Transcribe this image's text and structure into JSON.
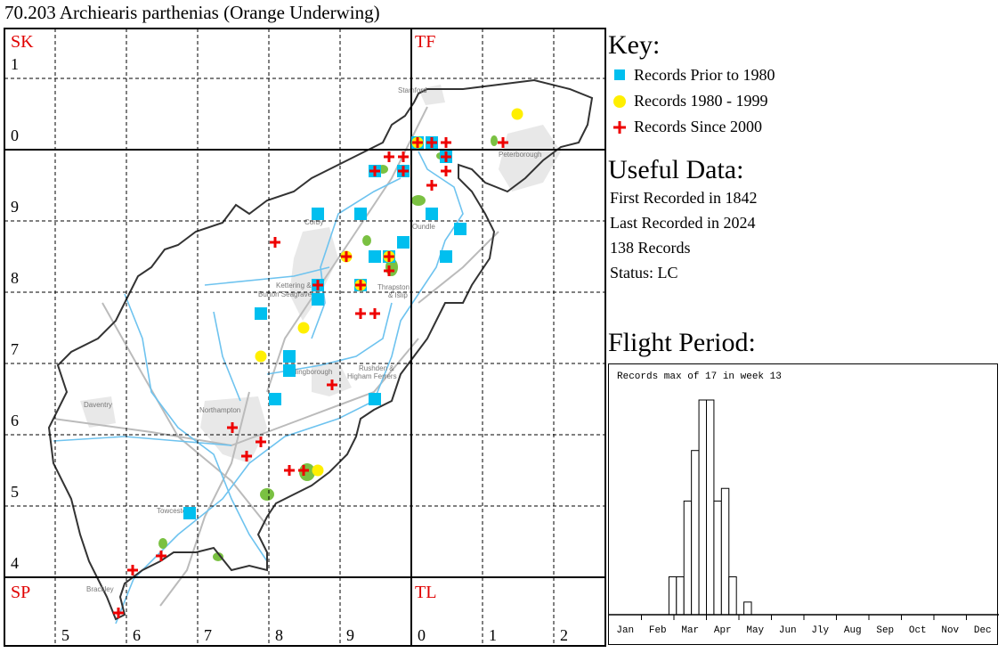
{
  "title": "70.203 Archiearis parthenias (Orange Underwing)",
  "map": {
    "squares": {
      "SK": "SK",
      "TF": "TF",
      "SP": "SP",
      "TL": "TL"
    },
    "row_labels": [
      "1",
      "0",
      "9",
      "8",
      "7",
      "6",
      "5",
      "4"
    ],
    "col_labels": [
      "5",
      "6",
      "7",
      "8",
      "9",
      "0",
      "1",
      "2"
    ],
    "towns": [
      "Stamford",
      "Peterborough",
      "Corby",
      "Oundle",
      "Kettering &",
      "Burton Seagrave",
      "Thrapston",
      "& Islip",
      "Wellingborough",
      "Rushden &",
      "Higham Ferrers",
      "Daventry",
      "Northampton",
      "Towcester",
      "Brackley"
    ]
  },
  "key": {
    "title": "Key:",
    "items": [
      {
        "label": "Records Prior to 1980",
        "color": "#00bfef",
        "icon": "square-icon"
      },
      {
        "label": "Records 1980 - 1999",
        "color": "#ffef00",
        "icon": "circle-icon"
      },
      {
        "label": "Records Since 2000",
        "color": "#ee0000",
        "icon": "plus-icon"
      }
    ]
  },
  "useful": {
    "title": "Useful Data:",
    "first": "First Recorded in 1842",
    "last": "Last Recorded in 2024",
    "records": "138 Records",
    "status": "Status: LC"
  },
  "flight": {
    "title": "Flight Period:"
  },
  "chart_data": {
    "type": "bar",
    "title": "Records max of 17 in week 13",
    "x_unit": "week",
    "weeks": [
      9,
      10,
      11,
      12,
      13,
      14,
      15,
      16,
      17,
      19
    ],
    "values": [
      3,
      3,
      9,
      13,
      17,
      17,
      9,
      10,
      3,
      1
    ],
    "ylim": [
      0,
      17
    ],
    "xlim": [
      1,
      52
    ],
    "month_labels": [
      "Jan",
      "Feb",
      "Mar",
      "Apr",
      "May",
      "Jun",
      "Jly",
      "Aug",
      "Sep",
      "Oct",
      "Nov",
      "Dec"
    ],
    "grid": false
  }
}
